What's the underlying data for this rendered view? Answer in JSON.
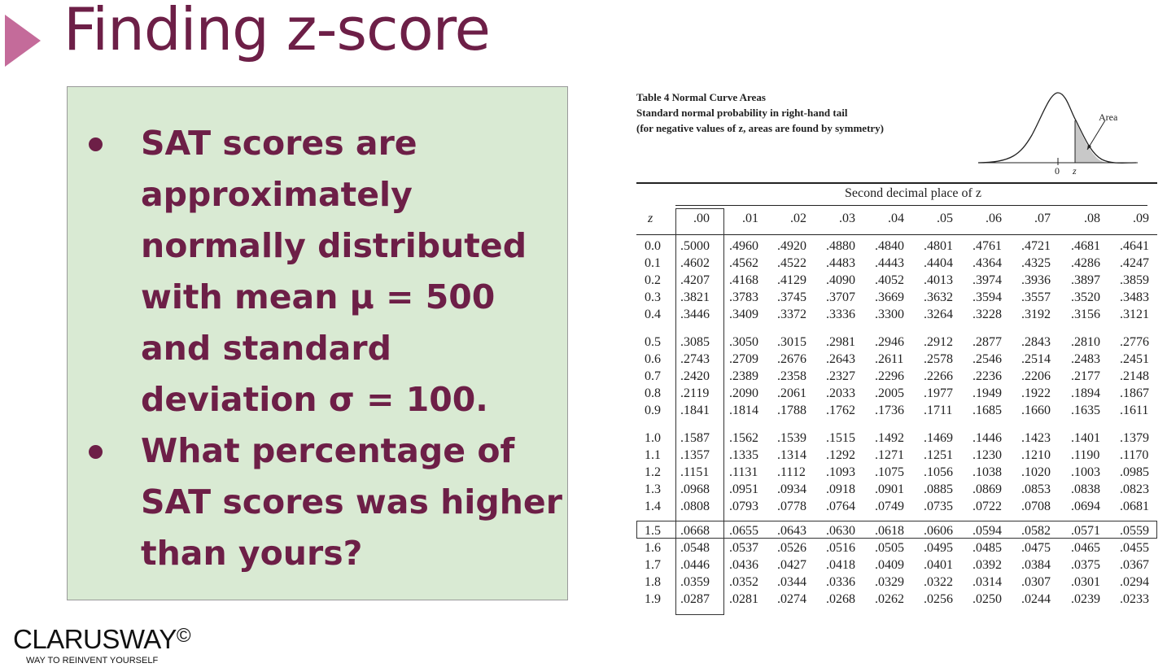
{
  "slide": {
    "title": "Finding z-score",
    "bullets": [
      "SAT scores are approximately normally distributed with mean μ = 500 and standard deviation σ = 100.",
      "What percentage of SAT scores was higher than yours?"
    ],
    "logo": {
      "name": "CLARUSWAY",
      "symbol": "©",
      "tagline": "WAY TO REINVENT YOURSELF"
    }
  },
  "table": {
    "caption": [
      "Table 4  Normal Curve Areas",
      "Standard normal probability in right-hand tail",
      "(for negative values of z, areas are found by symmetry)"
    ],
    "curve": {
      "area_label": "Area",
      "zero_label": "0",
      "z_label": "z"
    },
    "second_decimal_header": "Second decimal place of z",
    "z_header": "z",
    "columns": [
      ".00",
      ".01",
      ".02",
      ".03",
      ".04",
      ".05",
      ".06",
      ".07",
      ".08",
      ".09"
    ],
    "highlighted_row": "1.5",
    "rows": [
      {
        "z": "0.0",
        "values": [
          ".5000",
          ".4960",
          ".4920",
          ".4880",
          ".4840",
          ".4801",
          ".4761",
          ".4721",
          ".4681",
          ".4641"
        ]
      },
      {
        "z": "0.1",
        "values": [
          ".4602",
          ".4562",
          ".4522",
          ".4483",
          ".4443",
          ".4404",
          ".4364",
          ".4325",
          ".4286",
          ".4247"
        ]
      },
      {
        "z": "0.2",
        "values": [
          ".4207",
          ".4168",
          ".4129",
          ".4090",
          ".4052",
          ".4013",
          ".3974",
          ".3936",
          ".3897",
          ".3859"
        ]
      },
      {
        "z": "0.3",
        "values": [
          ".3821",
          ".3783",
          ".3745",
          ".3707",
          ".3669",
          ".3632",
          ".3594",
          ".3557",
          ".3520",
          ".3483"
        ]
      },
      {
        "z": "0.4",
        "values": [
          ".3446",
          ".3409",
          ".3372",
          ".3336",
          ".3300",
          ".3264",
          ".3228",
          ".3192",
          ".3156",
          ".3121"
        ]
      },
      {
        "z": "0.5",
        "values": [
          ".3085",
          ".3050",
          ".3015",
          ".2981",
          ".2946",
          ".2912",
          ".2877",
          ".2843",
          ".2810",
          ".2776"
        ]
      },
      {
        "z": "0.6",
        "values": [
          ".2743",
          ".2709",
          ".2676",
          ".2643",
          ".2611",
          ".2578",
          ".2546",
          ".2514",
          ".2483",
          ".2451"
        ]
      },
      {
        "z": "0.7",
        "values": [
          ".2420",
          ".2389",
          ".2358",
          ".2327",
          ".2296",
          ".2266",
          ".2236",
          ".2206",
          ".2177",
          ".2148"
        ]
      },
      {
        "z": "0.8",
        "values": [
          ".2119",
          ".2090",
          ".2061",
          ".2033",
          ".2005",
          ".1977",
          ".1949",
          ".1922",
          ".1894",
          ".1867"
        ]
      },
      {
        "z": "0.9",
        "values": [
          ".1841",
          ".1814",
          ".1788",
          ".1762",
          ".1736",
          ".1711",
          ".1685",
          ".1660",
          ".1635",
          ".1611"
        ]
      },
      {
        "z": "1.0",
        "values": [
          ".1587",
          ".1562",
          ".1539",
          ".1515",
          ".1492",
          ".1469",
          ".1446",
          ".1423",
          ".1401",
          ".1379"
        ]
      },
      {
        "z": "1.1",
        "values": [
          ".1357",
          ".1335",
          ".1314",
          ".1292",
          ".1271",
          ".1251",
          ".1230",
          ".1210",
          ".1190",
          ".1170"
        ]
      },
      {
        "z": "1.2",
        "values": [
          ".1151",
          ".1131",
          ".1112",
          ".1093",
          ".1075",
          ".1056",
          ".1038",
          ".1020",
          ".1003",
          ".0985"
        ]
      },
      {
        "z": "1.3",
        "values": [
          ".0968",
          ".0951",
          ".0934",
          ".0918",
          ".0901",
          ".0885",
          ".0869",
          ".0853",
          ".0838",
          ".0823"
        ]
      },
      {
        "z": "1.4",
        "values": [
          ".0808",
          ".0793",
          ".0778",
          ".0764",
          ".0749",
          ".0735",
          ".0722",
          ".0708",
          ".0694",
          ".0681"
        ]
      },
      {
        "z": "1.5",
        "values": [
          ".0668",
          ".0655",
          ".0643",
          ".0630",
          ".0618",
          ".0606",
          ".0594",
          ".0582",
          ".0571",
          ".0559"
        ]
      },
      {
        "z": "1.6",
        "values": [
          ".0548",
          ".0537",
          ".0526",
          ".0516",
          ".0505",
          ".0495",
          ".0485",
          ".0475",
          ".0465",
          ".0455"
        ]
      },
      {
        "z": "1.7",
        "values": [
          ".0446",
          ".0436",
          ".0427",
          ".0418",
          ".0409",
          ".0401",
          ".0392",
          ".0384",
          ".0375",
          ".0367"
        ]
      },
      {
        "z": "1.8",
        "values": [
          ".0359",
          ".0352",
          ".0344",
          ".0336",
          ".0329",
          ".0322",
          ".0314",
          ".0307",
          ".0301",
          ".0294"
        ]
      },
      {
        "z": "1.9",
        "values": [
          ".0287",
          ".0281",
          ".0274",
          ".0268",
          ".0262",
          ".0256",
          ".0250",
          ".0244",
          ".0239",
          ".0233"
        ]
      }
    ]
  }
}
